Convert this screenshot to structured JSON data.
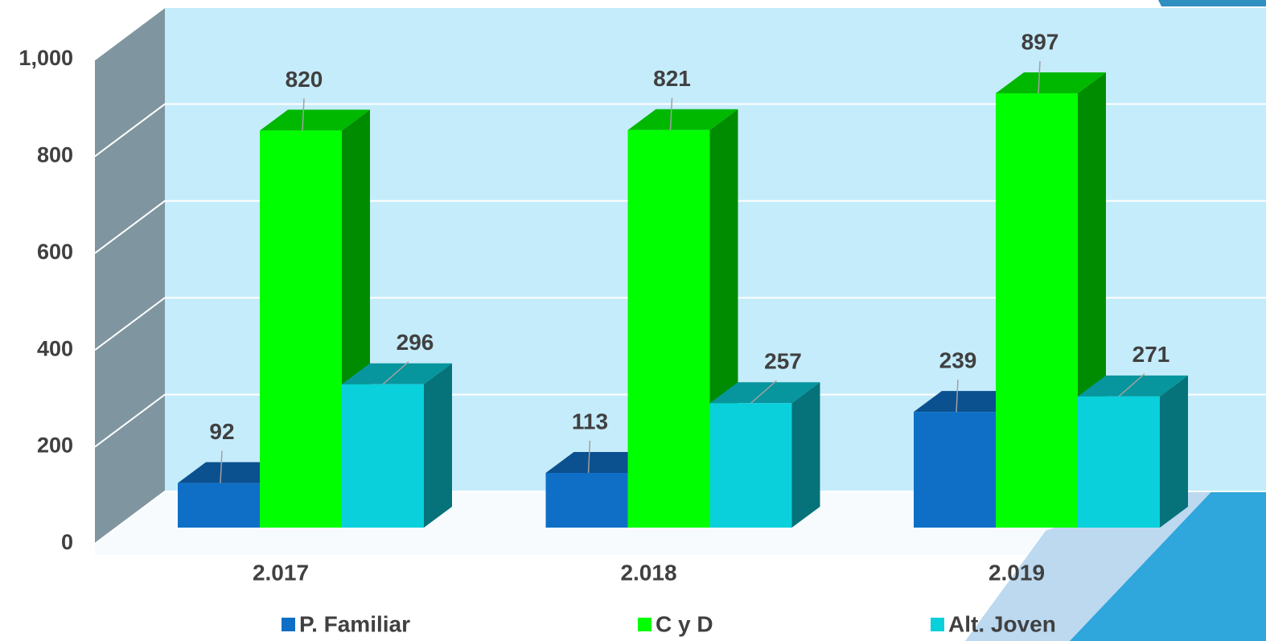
{
  "chart_data": {
    "type": "bar3d",
    "categories": [
      "2.017",
      "2.018",
      "2.019"
    ],
    "series": [
      {
        "name": "P. Familiar",
        "color": "#0f6fc6",
        "values": [
          92,
          113,
          239
        ]
      },
      {
        "name": "C y D",
        "color": "#00ff00",
        "values": [
          820,
          821,
          897
        ]
      },
      {
        "name": "Alt. Joven",
        "color": "#0ad0dc",
        "values": [
          296,
          257,
          271
        ]
      }
    ],
    "ylim": [
      0,
      1000
    ],
    "yticks": [
      0,
      200,
      400,
      600,
      800,
      {
        "value": 1000,
        "label": "1,000"
      }
    ],
    "grid": true
  }
}
